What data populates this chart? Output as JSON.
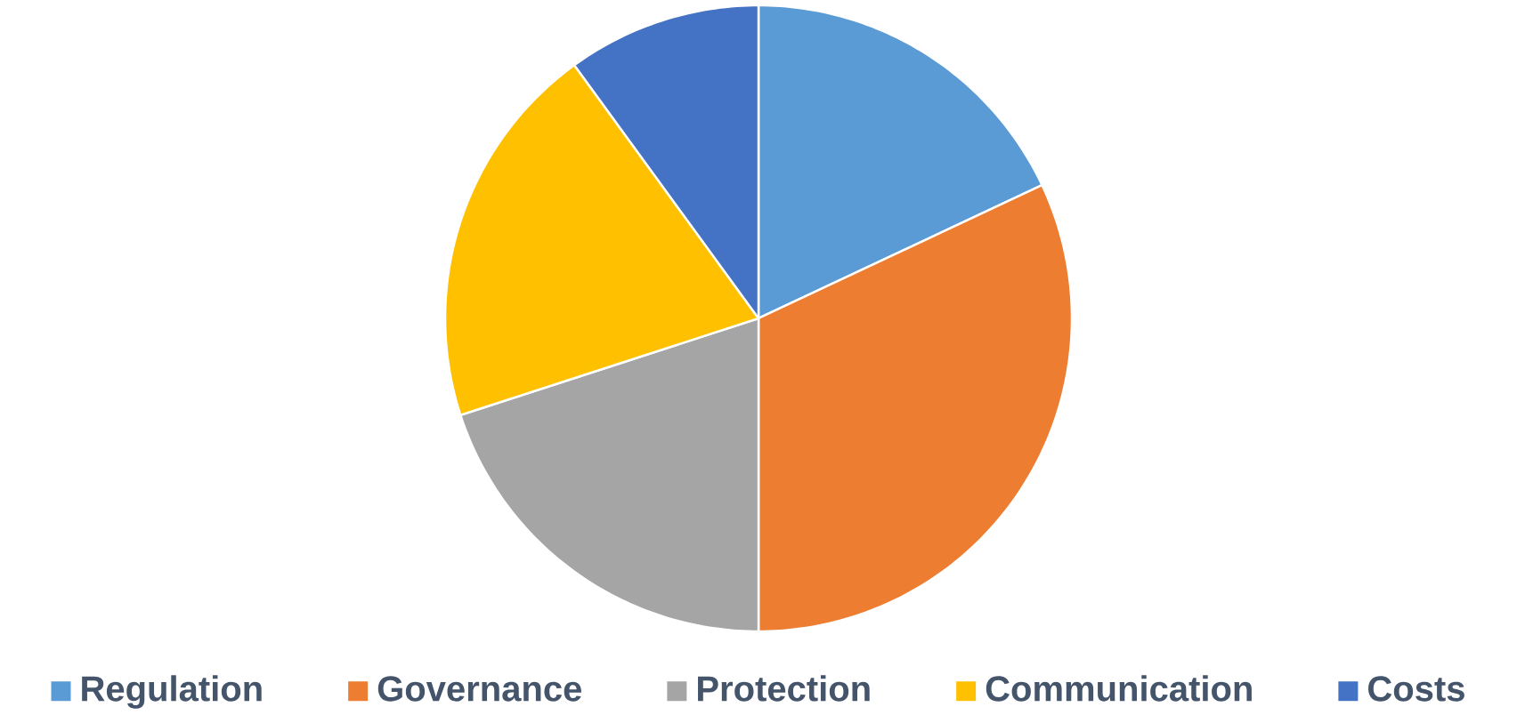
{
  "chart_data": {
    "type": "pie",
    "categories": [
      "Regulation",
      "Governance",
      "Protection",
      "Communication",
      "Costs"
    ],
    "values": [
      18,
      32,
      20,
      20,
      10
    ],
    "colors": [
      "#5b9bd5",
      "#ed7d31",
      "#a5a5a5",
      "#ffc000",
      "#4472c4"
    ],
    "legend": "bottom"
  }
}
